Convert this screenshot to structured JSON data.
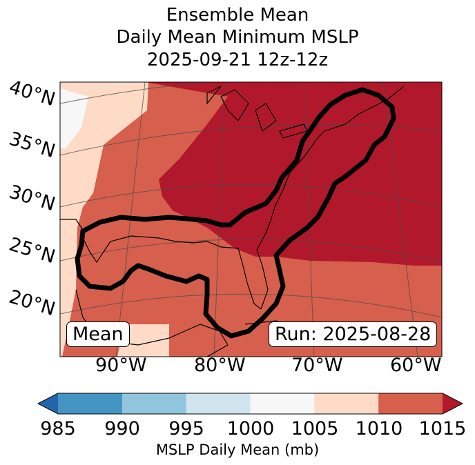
{
  "title": {
    "line1": "Ensemble Mean",
    "line2": "Daily Mean Minimum MSLP",
    "line3": "2025-09-21 12z-12z"
  },
  "map": {
    "lat_labels": [
      "40°N",
      "35°N",
      "30°N",
      "25°N",
      "20°N"
    ],
    "lon_labels": [
      "90°W",
      "80°W",
      "70°W",
      "60°W"
    ],
    "mean_label": "Mean",
    "run_label": "Run: 2025-08-28",
    "fill_regions": [
      {
        "name": "1000-1005",
        "color": "#f7f7f7"
      },
      {
        "name": "1005-1010",
        "color": "#fddbc7"
      },
      {
        "name": "1010-1015",
        "color": "#d6604d"
      },
      {
        "name": ">1015",
        "color": "#b2182b"
      }
    ],
    "contour_color": "#000000"
  },
  "colorbar": {
    "ticks": [
      "985",
      "990",
      "995",
      "1000",
      "1005",
      "1010",
      "1015"
    ],
    "colors": [
      "#4393c3",
      "#92c5de",
      "#d1e5f0",
      "#f7f7f7",
      "#fddbc7",
      "#d6604d"
    ],
    "under_color": "#2166ac",
    "over_color": "#b2182b",
    "label": "MSLP Daily Mean (mb)"
  }
}
